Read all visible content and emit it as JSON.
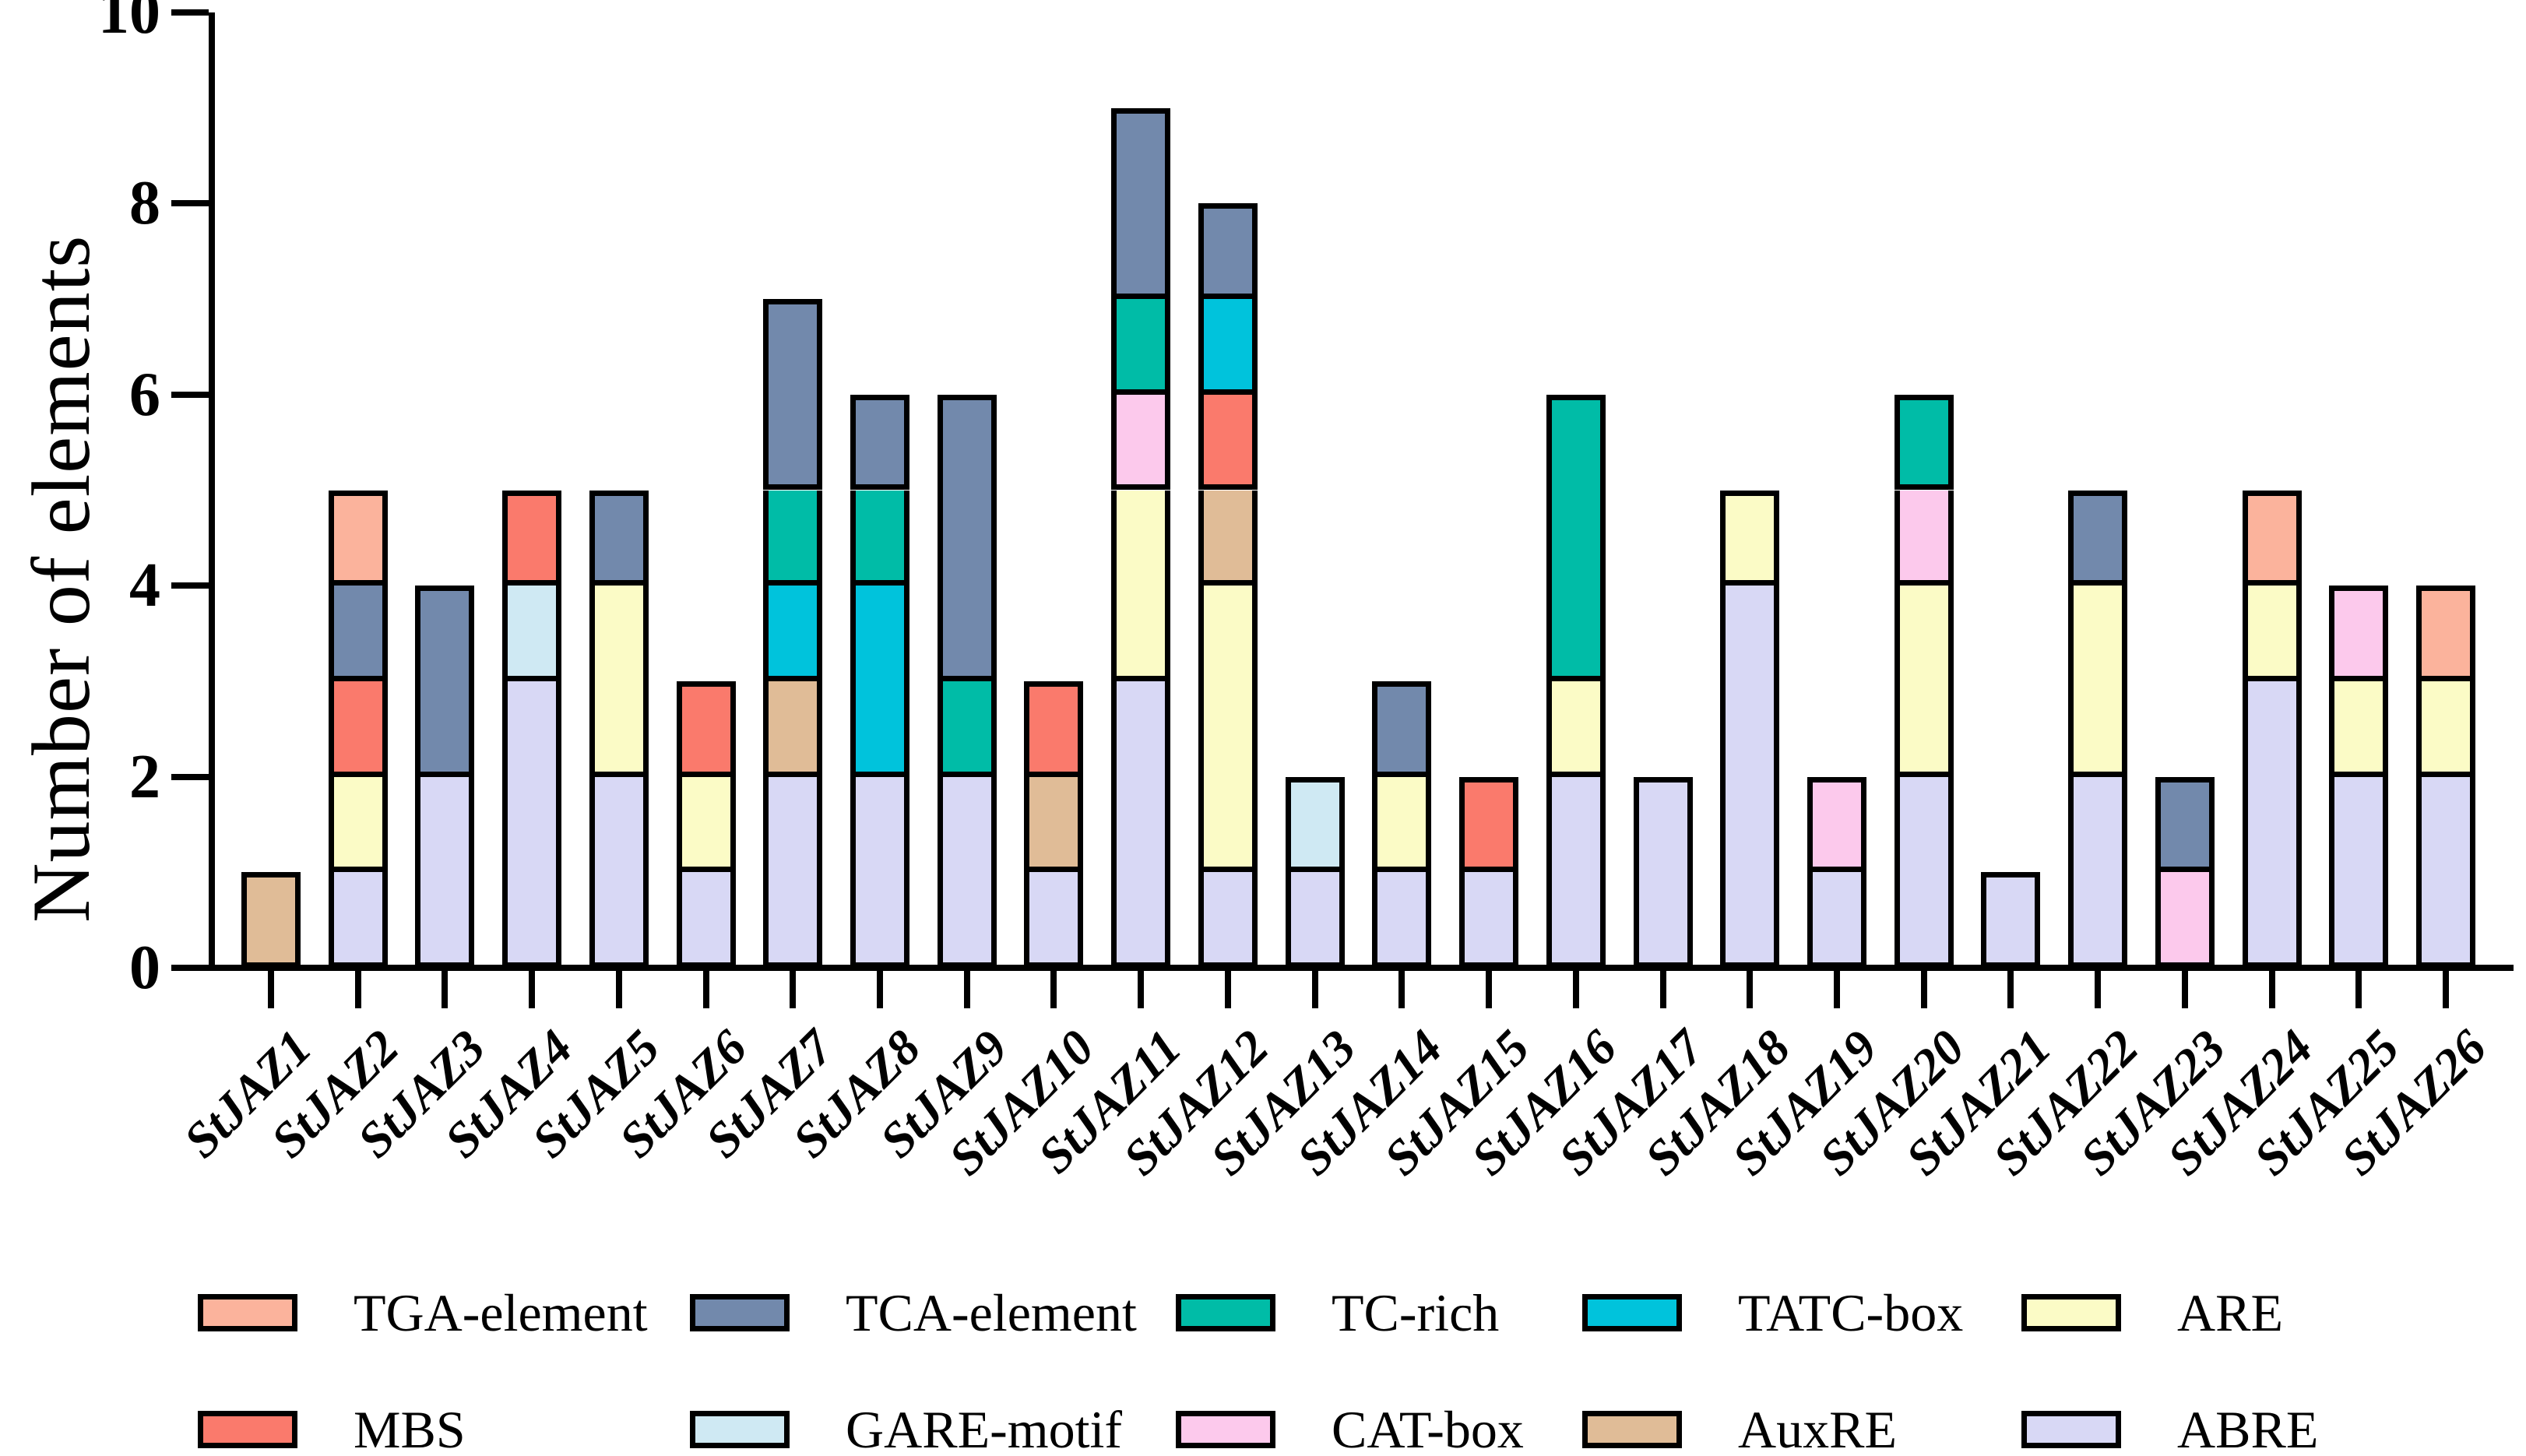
{
  "chart_data": {
    "type": "bar",
    "stacked": true,
    "title": "",
    "xlabel": "",
    "ylabel": "Number of elements",
    "ylim": [
      0,
      10
    ],
    "yticks": [
      0,
      2,
      4,
      6,
      8,
      10
    ],
    "grid": false,
    "categories": [
      "StJAZ1",
      "StJAZ2",
      "StJAZ3",
      "StJAZ4",
      "StJAZ5",
      "StJAZ6",
      "StJAZ7",
      "StJAZ8",
      "StJAZ9",
      "StJAZ10",
      "StJAZ11",
      "StJAZ12",
      "StJAZ13",
      "StJAZ14",
      "StJAZ15",
      "StJAZ16",
      "StJAZ17",
      "StJAZ18",
      "StJAZ19",
      "StJAZ20",
      "StJAZ21",
      "StJAZ22",
      "StJAZ23",
      "StJAZ24",
      "StJAZ25",
      "StJAZ26"
    ],
    "series": [
      {
        "name": "TGA-element",
        "values": [
          0,
          1,
          0,
          0,
          0,
          0,
          0,
          0,
          0,
          0,
          0,
          0,
          0,
          0,
          0,
          0,
          0,
          0,
          0,
          0,
          0,
          0,
          0,
          1,
          0,
          1
        ]
      },
      {
        "name": "TCA-element",
        "values": [
          0,
          1,
          2,
          0,
          1,
          0,
          2,
          1,
          3,
          0,
          2,
          1,
          0,
          1,
          0,
          0,
          0,
          0,
          0,
          0,
          0,
          1,
          1,
          0,
          0,
          0
        ]
      },
      {
        "name": "TC-rich",
        "values": [
          0,
          0,
          0,
          0,
          0,
          0,
          1,
          1,
          1,
          0,
          1,
          0,
          0,
          0,
          0,
          3,
          0,
          0,
          0,
          1,
          0,
          0,
          0,
          0,
          0,
          0
        ]
      },
      {
        "name": "TATC-box",
        "values": [
          0,
          0,
          0,
          0,
          0,
          0,
          1,
          2,
          0,
          0,
          0,
          1,
          0,
          0,
          0,
          0,
          0,
          0,
          0,
          0,
          0,
          0,
          0,
          0,
          0,
          0
        ]
      },
      {
        "name": "ARE",
        "values": [
          0,
          1,
          0,
          0,
          2,
          1,
          0,
          0,
          0,
          0,
          2,
          3,
          0,
          1,
          0,
          1,
          0,
          1,
          0,
          2,
          0,
          2,
          0,
          1,
          1,
          1
        ]
      },
      {
        "name": "MBS",
        "values": [
          0,
          1,
          0,
          1,
          0,
          1,
          0,
          0,
          0,
          1,
          0,
          1,
          0,
          0,
          1,
          0,
          0,
          0,
          0,
          0,
          0,
          0,
          0,
          0,
          0,
          0
        ]
      },
      {
        "name": "GARE-motif",
        "values": [
          0,
          0,
          0,
          1,
          0,
          0,
          0,
          0,
          0,
          0,
          0,
          0,
          1,
          0,
          0,
          0,
          0,
          0,
          0,
          0,
          0,
          0,
          0,
          0,
          0,
          0
        ]
      },
      {
        "name": "CAT-box",
        "values": [
          0,
          0,
          0,
          0,
          0,
          0,
          0,
          0,
          0,
          0,
          1,
          0,
          0,
          0,
          0,
          0,
          0,
          0,
          1,
          1,
          0,
          0,
          1,
          0,
          1,
          0
        ]
      },
      {
        "name": "AuxRE",
        "values": [
          1,
          0,
          0,
          0,
          0,
          0,
          1,
          0,
          0,
          1,
          0,
          1,
          0,
          0,
          0,
          0,
          0,
          0,
          0,
          0,
          0,
          0,
          0,
          0,
          0,
          0
        ]
      },
      {
        "name": "ABRE",
        "values": [
          0,
          1,
          2,
          3,
          2,
          1,
          2,
          2,
          2,
          1,
          3,
          1,
          1,
          1,
          1,
          2,
          2,
          4,
          1,
          2,
          1,
          2,
          0,
          3,
          2,
          2
        ]
      }
    ],
    "stack_order_bottom_to_top": [
      "ABRE",
      "ARE",
      "AuxRE",
      "CAT-box",
      "GARE-motif",
      "MBS",
      "TATC-box",
      "TC-rich",
      "TCA-element",
      "TGA-element"
    ],
    "colors": {
      "TGA-element": "#FBB39C",
      "TCA-element": "#7289AC",
      "TC-rich": "#00BCA7",
      "TATC-box": "#00C3DC",
      "ARE": "#FBFBC6",
      "MBS": "#FA7A6C",
      "GARE-motif": "#CFE9F3",
      "CAT-box": "#FCC9EC",
      "AuxRE": "#E0BC97",
      "ABRE": "#D8D8F5"
    },
    "axis_color": "#000000",
    "legend": {
      "position": "bottom",
      "rows": [
        [
          "TGA-element",
          "TCA-element",
          "TC-rich",
          "TATC-box",
          "ARE"
        ],
        [
          "MBS",
          "GARE-motif",
          "CAT-box",
          "AuxRE",
          "ABRE"
        ]
      ]
    }
  }
}
